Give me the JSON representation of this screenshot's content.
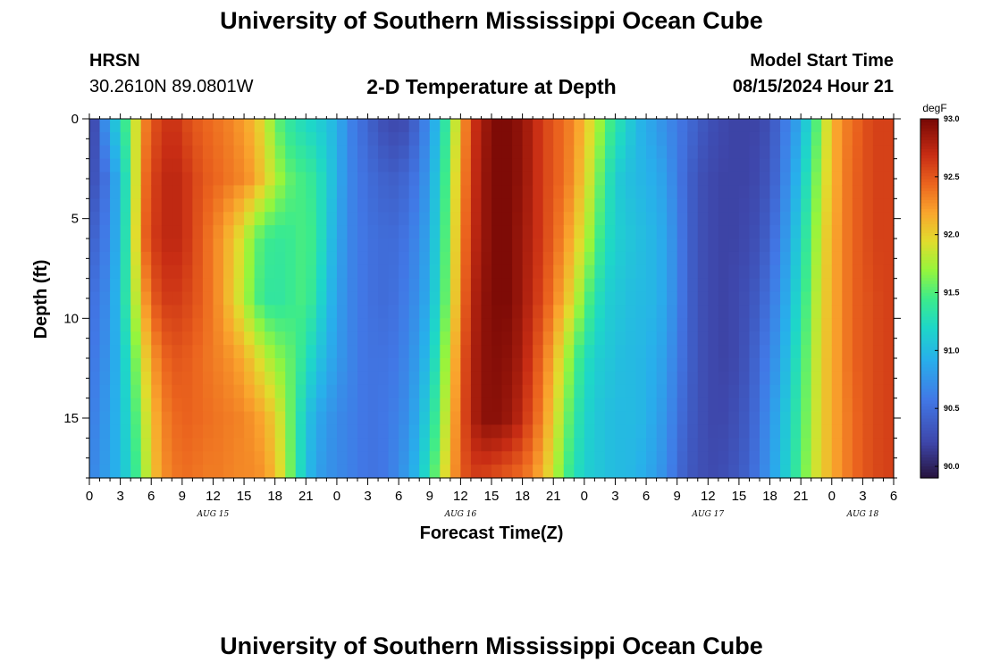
{
  "header": {
    "title": "University of Southern Mississippi Ocean Cube",
    "station": "HRSN",
    "coords": "30.2610N  89.0801W",
    "subtitle": "2-D Temperature at Depth",
    "model_label": "Model Start Time",
    "model_time": "08/15/2024 Hour 21"
  },
  "footer": {
    "title": "University of Southern Mississippi Ocean Cube"
  },
  "chart_data": {
    "type": "heatmap",
    "xlabel": "Forecast Time(Z)",
    "ylabel": "Depth (ft)",
    "x_hours_range": [
      0,
      78
    ],
    "y_range": [
      0,
      18
    ],
    "x_tick_hours": [
      0,
      3,
      6,
      9,
      12,
      15,
      18,
      21,
      24,
      27,
      30,
      33,
      36,
      39,
      42,
      45,
      48,
      51,
      54,
      57,
      60,
      63,
      66,
      69,
      72,
      75,
      78
    ],
    "x_tick_labels": [
      "0",
      "3",
      "6",
      "9",
      "12",
      "15",
      "18",
      "21",
      "0",
      "3",
      "6",
      "9",
      "12",
      "15",
      "18",
      "21",
      "0",
      "3",
      "6",
      "9",
      "12",
      "15",
      "18",
      "21",
      "0",
      "3",
      "6"
    ],
    "date_labels": [
      {
        "text": "AUG 15",
        "hour": 12
      },
      {
        "text": "AUG 16",
        "hour": 36
      },
      {
        "text": "AUG 17",
        "hour": 60
      },
      {
        "text": "AUG 18",
        "hour": 75
      }
    ],
    "y_ticks": [
      0,
      5,
      10,
      15
    ],
    "y_tick_labels": [
      "0",
      "5",
      "10",
      "15"
    ],
    "colorbar": {
      "unit": "degF",
      "min": 89.9,
      "max": 93.0,
      "ticks": [
        90.0,
        90.5,
        91.0,
        91.5,
        92.0,
        92.5,
        93.0
      ],
      "tick_labels": [
        "90.0",
        "90.5",
        "91.0",
        "91.5",
        "92.0",
        "92.5",
        "93.0"
      ]
    },
    "depths_ft": [
      0,
      3,
      6,
      9,
      12,
      15,
      18
    ],
    "series": [
      {
        "hours": [
          0,
          1,
          2,
          3,
          4,
          5,
          6,
          7,
          8,
          9,
          10,
          11,
          12,
          13,
          14,
          15,
          16,
          17,
          18,
          19,
          20,
          21,
          22,
          23,
          24,
          25,
          26,
          27,
          28,
          29,
          30,
          31,
          32,
          33,
          34,
          35,
          36,
          37,
          38,
          39,
          40,
          41,
          42,
          43,
          44,
          45,
          46,
          47,
          48,
          49,
          50,
          51,
          52,
          53,
          54,
          55,
          56,
          57,
          58,
          59,
          60,
          61,
          62,
          63,
          64,
          65,
          66,
          67,
          68,
          69,
          70,
          71,
          72,
          73,
          74,
          75,
          76,
          77,
          78
        ],
        "temps_at_0ft": [
          89.95,
          90.6,
          90.85,
          91.3,
          91.6,
          92.2,
          92.5,
          92.6,
          92.7,
          92.6,
          92.5,
          92.45,
          92.4,
          92.35,
          92.3,
          92.2,
          92.1,
          91.9,
          91.6,
          91.4,
          91.3,
          91.2,
          91.15,
          91.05,
          90.95,
          90.7,
          90.55,
          90.45,
          90.3,
          90.25,
          90.2,
          90.3,
          90.5,
          90.75,
          91.1,
          91.6,
          92.1,
          92.6,
          92.8,
          92.95,
          93.0,
          92.95,
          92.9,
          92.75,
          92.6,
          92.5,
          92.4,
          92.3,
          92.1,
          91.85,
          91.6,
          91.35,
          91.2,
          91.0,
          90.9,
          90.8,
          90.7,
          90.6,
          90.5,
          90.4,
          90.3,
          90.25,
          90.2,
          90.2,
          90.2,
          90.2,
          90.3,
          90.5,
          90.7,
          90.9,
          91.3,
          91.7,
          92.1,
          92.3,
          92.4,
          92.5,
          92.6,
          92.6,
          92.6
        ]
      },
      {
        "temps_at_3ft": [
          90.25,
          90.4,
          90.65,
          91.05,
          91.5,
          92.3,
          92.55,
          92.7,
          92.75,
          92.7,
          92.6,
          92.5,
          92.45,
          92.4,
          92.35,
          92.3,
          92.2,
          92.0,
          91.8,
          91.6,
          91.5,
          91.45,
          91.35,
          91.15,
          90.95,
          90.7,
          90.6,
          90.5,
          90.45,
          90.4,
          90.4,
          90.5,
          90.6,
          90.85,
          91.2,
          91.7,
          92.2,
          92.6,
          92.85,
          92.95,
          93.0,
          92.95,
          92.9,
          92.75,
          92.6,
          92.5,
          92.4,
          92.25,
          92.0,
          91.75,
          91.4,
          91.15,
          91.05,
          91.0,
          90.95,
          90.9,
          90.8,
          90.6,
          90.45,
          90.3,
          90.25,
          90.2,
          90.2,
          90.2,
          90.2,
          90.25,
          90.35,
          90.55,
          90.8,
          91.05,
          91.45,
          91.8,
          92.1,
          92.3,
          92.45,
          92.5,
          92.6,
          92.6,
          92.6
        ]
      },
      {
        "temps_at_6ft": [
          90.4,
          90.5,
          90.7,
          91.05,
          91.55,
          92.35,
          92.6,
          92.7,
          92.75,
          92.7,
          92.6,
          92.45,
          92.35,
          92.2,
          92.05,
          91.85,
          91.6,
          91.45,
          91.4,
          91.4,
          91.45,
          91.5,
          91.4,
          91.1,
          90.9,
          90.7,
          90.6,
          90.55,
          90.5,
          90.5,
          90.5,
          90.6,
          90.7,
          90.9,
          91.25,
          91.75,
          92.25,
          92.65,
          92.85,
          92.95,
          93.0,
          92.95,
          92.85,
          92.75,
          92.6,
          92.45,
          92.3,
          92.1,
          91.85,
          91.6,
          91.3,
          91.15,
          91.1,
          91.05,
          91.0,
          90.95,
          90.85,
          90.65,
          90.45,
          90.3,
          90.25,
          90.2,
          90.2,
          90.2,
          90.25,
          90.3,
          90.45,
          90.65,
          90.9,
          91.2,
          91.55,
          91.9,
          92.15,
          92.3,
          92.45,
          92.5,
          92.6,
          92.6,
          92.6
        ]
      },
      {
        "temps_at_9ft": [
          90.5,
          90.6,
          90.75,
          91.1,
          91.55,
          92.1,
          92.45,
          92.6,
          92.65,
          92.6,
          92.55,
          92.45,
          92.35,
          92.2,
          92.0,
          91.8,
          91.55,
          91.4,
          91.35,
          91.4,
          91.45,
          91.5,
          91.3,
          91.05,
          90.85,
          90.7,
          90.6,
          90.55,
          90.5,
          90.5,
          90.55,
          90.65,
          90.75,
          90.95,
          91.3,
          91.8,
          92.3,
          92.7,
          92.9,
          92.95,
          93.0,
          92.95,
          92.85,
          92.7,
          92.55,
          92.35,
          92.15,
          91.9,
          91.6,
          91.35,
          91.15,
          91.1,
          91.05,
          91.0,
          91.0,
          90.95,
          90.85,
          90.65,
          90.45,
          90.3,
          90.25,
          90.2,
          90.2,
          90.25,
          90.3,
          90.4,
          90.55,
          90.75,
          91.0,
          91.3,
          91.65,
          91.95,
          92.15,
          92.3,
          92.45,
          92.5,
          92.55,
          92.6,
          92.6
        ]
      },
      {
        "temps_at_12ft": [
          90.55,
          90.65,
          90.8,
          91.0,
          91.4,
          91.85,
          92.2,
          92.4,
          92.5,
          92.5,
          92.45,
          92.4,
          92.35,
          92.3,
          92.25,
          92.15,
          92.0,
          91.85,
          91.7,
          91.6,
          91.5,
          91.3,
          91.1,
          90.95,
          90.8,
          90.7,
          90.6,
          90.55,
          90.55,
          90.55,
          90.6,
          90.7,
          90.85,
          91.05,
          91.45,
          91.95,
          92.4,
          92.75,
          92.9,
          92.95,
          92.95,
          92.9,
          92.8,
          92.6,
          92.4,
          92.15,
          91.85,
          91.55,
          91.3,
          91.15,
          91.1,
          91.05,
          91.0,
          91.0,
          90.95,
          90.9,
          90.8,
          90.6,
          90.45,
          90.3,
          90.25,
          90.2,
          90.2,
          90.25,
          90.35,
          90.5,
          90.65,
          90.85,
          91.1,
          91.4,
          91.7,
          92.0,
          92.15,
          92.3,
          92.45,
          92.5,
          92.55,
          92.6,
          92.6
        ]
      },
      {
        "temps_at_15ft": [
          90.6,
          90.7,
          90.85,
          91.0,
          91.3,
          91.7,
          92.05,
          92.3,
          92.4,
          92.45,
          92.45,
          92.4,
          92.4,
          92.35,
          92.35,
          92.3,
          92.25,
          92.15,
          92.0,
          91.75,
          91.4,
          91.1,
          90.9,
          90.8,
          90.7,
          90.65,
          90.6,
          90.55,
          90.55,
          90.6,
          90.65,
          90.75,
          90.95,
          91.2,
          91.6,
          92.05,
          92.45,
          92.75,
          92.9,
          92.95,
          92.9,
          92.85,
          92.7,
          92.5,
          92.3,
          92.0,
          91.7,
          91.4,
          91.2,
          91.1,
          91.05,
          91.0,
          91.0,
          91.0,
          90.95,
          90.85,
          90.75,
          90.55,
          90.4,
          90.3,
          90.25,
          90.2,
          90.25,
          90.3,
          90.4,
          90.55,
          90.75,
          90.95,
          91.2,
          91.45,
          91.75,
          92.0,
          92.15,
          92.3,
          92.4,
          92.5,
          92.55,
          92.6,
          92.6
        ]
      },
      {
        "temps_at_18ft": [
          90.65,
          90.75,
          90.85,
          91.0,
          91.25,
          91.6,
          92.0,
          92.25,
          92.35,
          92.4,
          92.4,
          92.35,
          92.35,
          92.35,
          92.3,
          92.3,
          92.3,
          92.25,
          92.1,
          91.8,
          91.4,
          91.05,
          90.85,
          90.75,
          90.7,
          90.65,
          90.6,
          90.55,
          90.55,
          90.6,
          90.7,
          90.85,
          91.05,
          91.35,
          91.75,
          92.15,
          92.45,
          92.6,
          92.6,
          92.55,
          92.5,
          92.45,
          92.4,
          92.3,
          92.1,
          91.85,
          91.55,
          91.3,
          91.15,
          91.1,
          91.05,
          91.0,
          91.0,
          90.95,
          90.9,
          90.8,
          90.7,
          90.5,
          90.35,
          90.3,
          90.25,
          90.25,
          90.3,
          90.35,
          90.45,
          90.6,
          90.8,
          91.0,
          91.25,
          91.5,
          91.8,
          92.0,
          92.15,
          92.3,
          92.4,
          92.5,
          92.55,
          92.6,
          92.6
        ]
      }
    ]
  }
}
